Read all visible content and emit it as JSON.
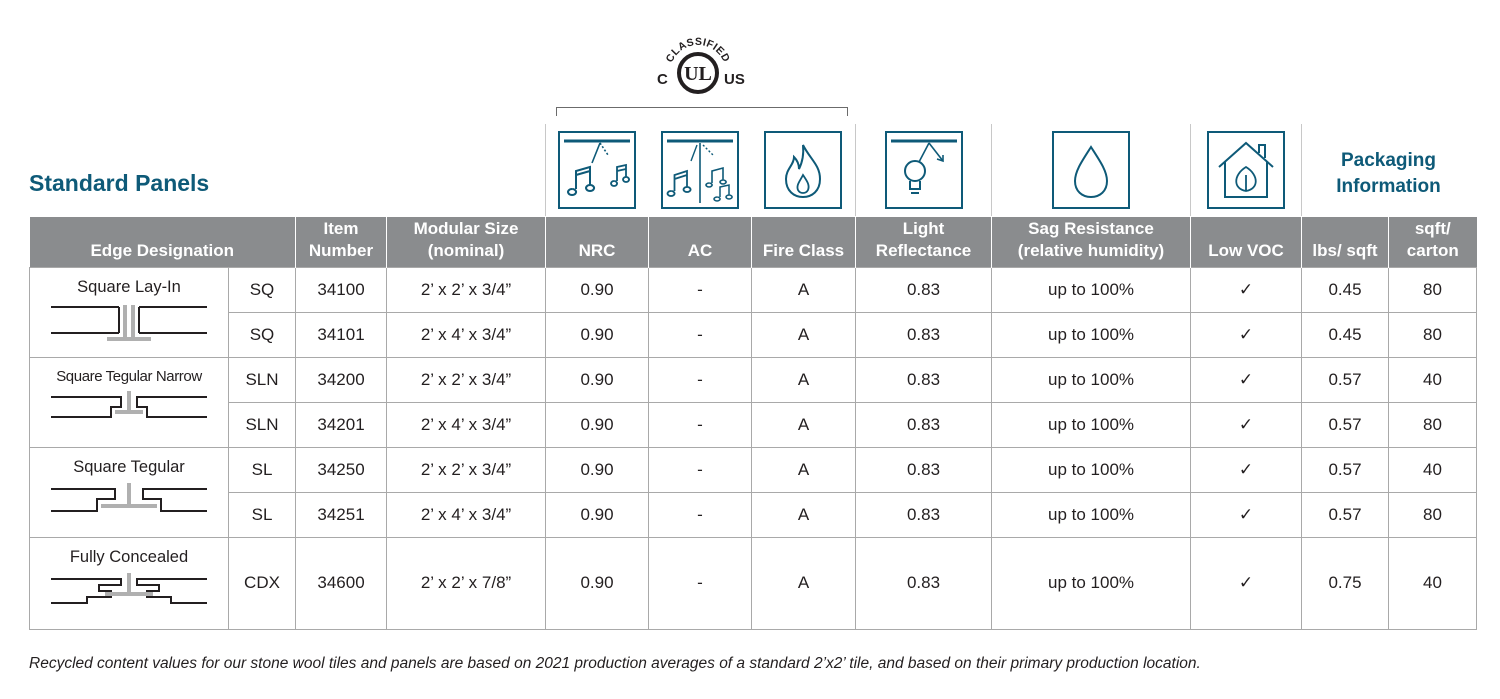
{
  "title": "Standard Panels",
  "certification": {
    "top": "CLASSIFIED",
    "left": "C",
    "center": "UL",
    "right": "US"
  },
  "packaging_title": "Packaging Information",
  "icons": [
    "nrc-icon",
    "ac-icon",
    "fire-class-icon",
    "light-reflectance-icon",
    "sag-resistance-icon",
    "low-voc-icon"
  ],
  "colors": {
    "accent": "#0e5a78",
    "header_bg": "#8a8c8e",
    "border": "#a9a9a9"
  },
  "columns": {
    "edge": "Edge Designation",
    "item": "Item Number",
    "size": "Modular Size (nominal)",
    "nrc": "NRC",
    "ac": "AC",
    "fire": "Fire Class",
    "light": "Light Reflectance",
    "sag": "Sag Resistance (relative humidity)",
    "voc": "Low VOC",
    "lbs": "lbs/ sqft",
    "sqft": "sqft/ carton"
  },
  "groups": [
    {
      "name": "Square Lay-In",
      "rows": [
        {
          "code": "SQ",
          "item": "34100",
          "size": "2’ x 2’ x 3/4”",
          "nrc": "0.90",
          "ac": "-",
          "fire": "A",
          "light": "0.83",
          "sag": "up to 100%",
          "voc": "✓",
          "lbs": "0.45",
          "sqft": "80"
        },
        {
          "code": "SQ",
          "item": "34101",
          "size": "2’ x 4’ x 3/4”",
          "nrc": "0.90",
          "ac": "-",
          "fire": "A",
          "light": "0.83",
          "sag": "up to 100%",
          "voc": "✓",
          "lbs": "0.45",
          "sqft": "80"
        }
      ]
    },
    {
      "name": "Square Tegular Narrow",
      "rows": [
        {
          "code": "SLN",
          "item": "34200",
          "size": "2’ x 2’ x 3/4”",
          "nrc": "0.90",
          "ac": "-",
          "fire": "A",
          "light": "0.83",
          "sag": "up to 100%",
          "voc": "✓",
          "lbs": "0.57",
          "sqft": "40"
        },
        {
          "code": "SLN",
          "item": "34201",
          "size": "2’ x 4’ x 3/4”",
          "nrc": "0.90",
          "ac": "-",
          "fire": "A",
          "light": "0.83",
          "sag": "up to 100%",
          "voc": "✓",
          "lbs": "0.57",
          "sqft": "80"
        }
      ]
    },
    {
      "name": "Square Tegular",
      "rows": [
        {
          "code": "SL",
          "item": "34250",
          "size": "2’ x 2’ x 3/4”",
          "nrc": "0.90",
          "ac": "-",
          "fire": "A",
          "light": "0.83",
          "sag": "up to 100%",
          "voc": "✓",
          "lbs": "0.57",
          "sqft": "40"
        },
        {
          "code": "SL",
          "item": "34251",
          "size": "2’ x 4’ x 3/4”",
          "nrc": "0.90",
          "ac": "-",
          "fire": "A",
          "light": "0.83",
          "sag": "up to 100%",
          "voc": "✓",
          "lbs": "0.57",
          "sqft": "80"
        }
      ]
    },
    {
      "name": "Fully Concealed",
      "rows": [
        {
          "code": "CDX",
          "item": "34600",
          "size": "2’ x 2’ x 7/8”",
          "nrc": "0.90",
          "ac": "-",
          "fire": "A",
          "light": "0.83",
          "sag": "up to 100%",
          "voc": "✓",
          "lbs": "0.75",
          "sqft": "40"
        }
      ]
    }
  ],
  "footnote": "Recycled content values for our stone wool tiles and panels are based on 2021 production averages of a standard 2’x2’ tile, and based on their primary production location."
}
